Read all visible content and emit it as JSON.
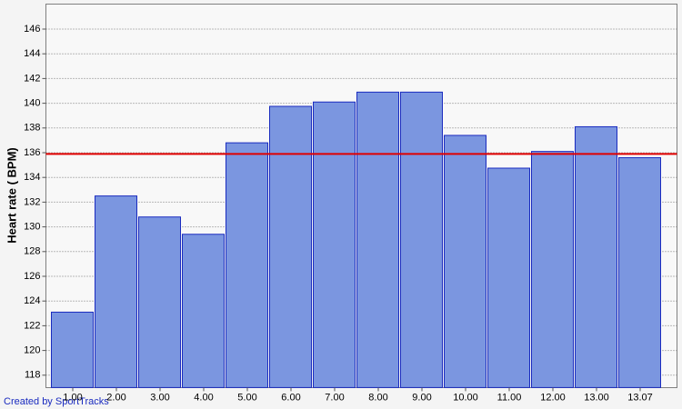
{
  "chart_data": {
    "type": "bar",
    "y_label": "Heart rate ( BPM)",
    "footer": "Created by SportTracks",
    "categories": [
      "1.00",
      "2.00",
      "3.00",
      "4.00",
      "5.00",
      "6.00",
      "7.00",
      "8.00",
      "9.00",
      "10.00",
      "11.00",
      "12.00",
      "13.00",
      "13.07"
    ],
    "values": [
      123.1,
      132.5,
      130.8,
      129.4,
      136.8,
      139.75,
      140.1,
      140.9,
      140.9,
      137.4,
      134.75,
      136.1,
      138.1,
      135.6
    ],
    "color": "#7b96e0",
    "ylim": [
      117,
      148
    ],
    "yticks": [
      118,
      120,
      122,
      124,
      126,
      128,
      130,
      132,
      134,
      136,
      138,
      140,
      142,
      144,
      146
    ],
    "grid": true,
    "reference_line": {
      "value": 135.9,
      "color": "#e00000"
    }
  }
}
